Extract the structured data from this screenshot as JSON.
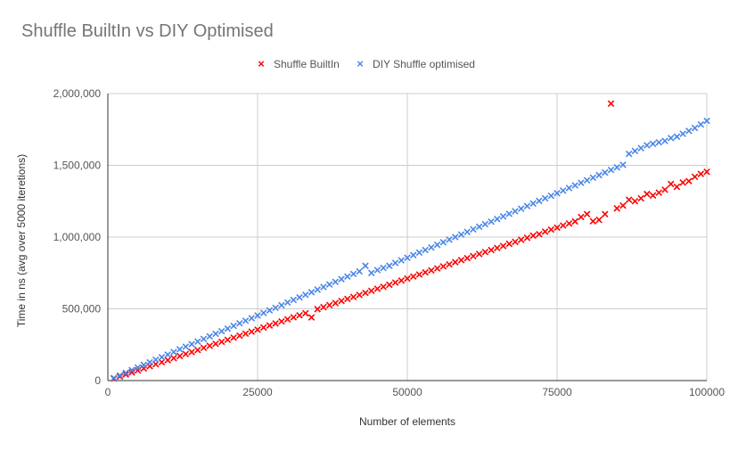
{
  "chart_data": {
    "type": "scatter",
    "title": "Shuffle BuiltIn vs DIY Optimised",
    "xlabel": "Number of elements",
    "ylabel": "Time in ns (avg over 5000 iteretions)",
    "xlim": [
      0,
      100000
    ],
    "ylim": [
      0,
      2000000
    ],
    "x_ticks": [
      "0",
      "25000",
      "50000",
      "75000",
      "100000"
    ],
    "y_ticks": [
      "0",
      "500,000",
      "1,000,000",
      "1,500,000",
      "2,000,000"
    ],
    "grid": true,
    "legend_position": "top",
    "marker": "×",
    "series": [
      {
        "name": "Shuffle BuiltIn",
        "color": "#ff0000",
        "points": [
          [
            1000,
            14000
          ],
          [
            2000,
            28000
          ],
          [
            3000,
            43000
          ],
          [
            4000,
            57000
          ],
          [
            5000,
            71000
          ],
          [
            6000,
            85000
          ],
          [
            7000,
            100000
          ],
          [
            8000,
            114000
          ],
          [
            9000,
            128000
          ],
          [
            10000,
            142000
          ],
          [
            11000,
            156000
          ],
          [
            12000,
            171000
          ],
          [
            13000,
            185000
          ],
          [
            14000,
            199000
          ],
          [
            15000,
            213000
          ],
          [
            16000,
            228000
          ],
          [
            17000,
            242000
          ],
          [
            18000,
            256000
          ],
          [
            19000,
            270000
          ],
          [
            20000,
            284000
          ],
          [
            21000,
            299000
          ],
          [
            22000,
            313000
          ],
          [
            23000,
            327000
          ],
          [
            24000,
            341000
          ],
          [
            25000,
            355000
          ],
          [
            26000,
            370000
          ],
          [
            27000,
            384000
          ],
          [
            28000,
            398000
          ],
          [
            29000,
            412000
          ],
          [
            30000,
            427000
          ],
          [
            31000,
            441000
          ],
          [
            32000,
            455000
          ],
          [
            33000,
            469000
          ],
          [
            34000,
            440000
          ],
          [
            35000,
            498000
          ],
          [
            36000,
            512000
          ],
          [
            37000,
            526000
          ],
          [
            38000,
            540000
          ],
          [
            39000,
            555000
          ],
          [
            40000,
            569000
          ],
          [
            41000,
            583000
          ],
          [
            42000,
            597000
          ],
          [
            43000,
            611000
          ],
          [
            44000,
            626000
          ],
          [
            45000,
            640000
          ],
          [
            46000,
            654000
          ],
          [
            47000,
            668000
          ],
          [
            48000,
            683000
          ],
          [
            49000,
            697000
          ],
          [
            50000,
            711000
          ],
          [
            51000,
            725000
          ],
          [
            52000,
            739000
          ],
          [
            53000,
            754000
          ],
          [
            54000,
            768000
          ],
          [
            55000,
            782000
          ],
          [
            56000,
            796000
          ],
          [
            57000,
            810000
          ],
          [
            58000,
            825000
          ],
          [
            59000,
            839000
          ],
          [
            60000,
            853000
          ],
          [
            61000,
            867000
          ],
          [
            62000,
            882000
          ],
          [
            63000,
            896000
          ],
          [
            64000,
            910000
          ],
          [
            65000,
            924000
          ],
          [
            66000,
            938000
          ],
          [
            67000,
            953000
          ],
          [
            68000,
            967000
          ],
          [
            69000,
            981000
          ],
          [
            70000,
            995000
          ],
          [
            71000,
            1010000
          ],
          [
            72000,
            1020000
          ],
          [
            73000,
            1038000
          ],
          [
            74000,
            1052000
          ],
          [
            75000,
            1066000
          ],
          [
            76000,
            1081000
          ],
          [
            77000,
            1095000
          ],
          [
            78000,
            1109000
          ],
          [
            79000,
            1140000
          ],
          [
            80000,
            1160000
          ],
          [
            81000,
            1110000
          ],
          [
            82000,
            1120000
          ],
          [
            83000,
            1160000
          ],
          [
            84000,
            1930000
          ],
          [
            85000,
            1200000
          ],
          [
            86000,
            1220000
          ],
          [
            87000,
            1260000
          ],
          [
            88000,
            1250000
          ],
          [
            89000,
            1270000
          ],
          [
            90000,
            1300000
          ],
          [
            91000,
            1290000
          ],
          [
            92000,
            1310000
          ],
          [
            93000,
            1330000
          ],
          [
            94000,
            1370000
          ],
          [
            95000,
            1350000
          ],
          [
            96000,
            1380000
          ],
          [
            97000,
            1390000
          ],
          [
            98000,
            1420000
          ],
          [
            99000,
            1440000
          ],
          [
            100000,
            1455000
          ]
        ]
      },
      {
        "name": "DIY Shuffle optimised",
        "color": "#4a86e8",
        "points": [
          [
            1000,
            18000
          ],
          [
            2000,
            36000
          ],
          [
            3000,
            54000
          ],
          [
            4000,
            73000
          ],
          [
            5000,
            91000
          ],
          [
            6000,
            109000
          ],
          [
            7000,
            127000
          ],
          [
            8000,
            145000
          ],
          [
            9000,
            163000
          ],
          [
            10000,
            181000
          ],
          [
            11000,
            199000
          ],
          [
            12000,
            218000
          ],
          [
            13000,
            236000
          ],
          [
            14000,
            254000
          ],
          [
            15000,
            272000
          ],
          [
            16000,
            290000
          ],
          [
            17000,
            308000
          ],
          [
            18000,
            326000
          ],
          [
            19000,
            344000
          ],
          [
            20000,
            362000
          ],
          [
            21000,
            381000
          ],
          [
            22000,
            399000
          ],
          [
            23000,
            417000
          ],
          [
            24000,
            435000
          ],
          [
            25000,
            453000
          ],
          [
            26000,
            471000
          ],
          [
            27000,
            489000
          ],
          [
            28000,
            507000
          ],
          [
            29000,
            525000
          ],
          [
            30000,
            544000
          ],
          [
            31000,
            562000
          ],
          [
            32000,
            580000
          ],
          [
            33000,
            598000
          ],
          [
            34000,
            616000
          ],
          [
            35000,
            634000
          ],
          [
            36000,
            652000
          ],
          [
            37000,
            670000
          ],
          [
            38000,
            688000
          ],
          [
            39000,
            707000
          ],
          [
            40000,
            725000
          ],
          [
            41000,
            743000
          ],
          [
            42000,
            761000
          ],
          [
            43000,
            800000
          ],
          [
            44000,
            750000
          ],
          [
            45000,
            770000
          ],
          [
            46000,
            785000
          ],
          [
            47000,
            800000
          ],
          [
            48000,
            820000
          ],
          [
            49000,
            838000
          ],
          [
            50000,
            856000
          ],
          [
            51000,
            874000
          ],
          [
            52000,
            892000
          ],
          [
            53000,
            910000
          ],
          [
            54000,
            928000
          ],
          [
            55000,
            946000
          ],
          [
            56000,
            964000
          ],
          [
            57000,
            982000
          ],
          [
            58000,
            1000000
          ],
          [
            59000,
            1018000
          ],
          [
            60000,
            1036000
          ],
          [
            61000,
            1054000
          ],
          [
            62000,
            1072000
          ],
          [
            63000,
            1090000
          ],
          [
            64000,
            1108000
          ],
          [
            65000,
            1126000
          ],
          [
            66000,
            1144000
          ],
          [
            67000,
            1162000
          ],
          [
            68000,
            1180000
          ],
          [
            69000,
            1198000
          ],
          [
            70000,
            1216000
          ],
          [
            71000,
            1234000
          ],
          [
            72000,
            1252000
          ],
          [
            73000,
            1270000
          ],
          [
            74000,
            1288000
          ],
          [
            75000,
            1306000
          ],
          [
            76000,
            1324000
          ],
          [
            77000,
            1342000
          ],
          [
            78000,
            1360000
          ],
          [
            79000,
            1378000
          ],
          [
            80000,
            1396000
          ],
          [
            81000,
            1414000
          ],
          [
            82000,
            1432000
          ],
          [
            83000,
            1450000
          ],
          [
            84000,
            1468000
          ],
          [
            85000,
            1486000
          ],
          [
            86000,
            1504000
          ],
          [
            87000,
            1580000
          ],
          [
            88000,
            1600000
          ],
          [
            89000,
            1620000
          ],
          [
            90000,
            1640000
          ],
          [
            91000,
            1650000
          ],
          [
            92000,
            1660000
          ],
          [
            93000,
            1670000
          ],
          [
            94000,
            1690000
          ],
          [
            95000,
            1700000
          ],
          [
            96000,
            1720000
          ],
          [
            97000,
            1740000
          ],
          [
            98000,
            1760000
          ],
          [
            99000,
            1785000
          ],
          [
            100000,
            1810000
          ]
        ]
      }
    ]
  }
}
